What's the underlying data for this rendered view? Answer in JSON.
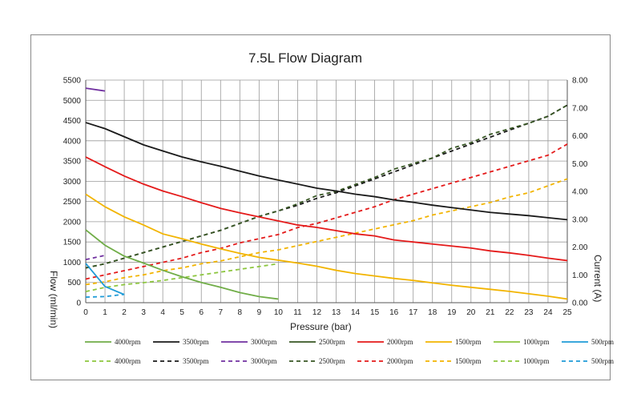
{
  "chart_data": {
    "type": "line",
    "title": "7.5L Flow Diagram",
    "xlabel": "Pressure (bar)",
    "ylabel_left": "Flow (ml/min)",
    "ylabel_right": "Current (A)",
    "xlim": [
      0,
      25
    ],
    "ylim_left": [
      0,
      5500
    ],
    "ylim_right": [
      0,
      8
    ],
    "x_ticks": [
      "0",
      "1",
      "2",
      "3",
      "4",
      "5",
      "6",
      "7",
      "8",
      "9",
      "10",
      "11",
      "12",
      "13",
      "14",
      "15",
      "16",
      "17",
      "18",
      "19",
      "20",
      "21",
      "22",
      "23",
      "24",
      "25"
    ],
    "y_left_ticks": [
      "0",
      "500",
      "1000",
      "1500",
      "2000",
      "2500",
      "3000",
      "3500",
      "4000",
      "4500",
      "5000",
      "5500"
    ],
    "y_right_ticks": [
      "0.00",
      "1.00",
      "2.00",
      "3.00",
      "4.00",
      "5.00",
      "6.00",
      "7.00",
      "8.00"
    ],
    "grid": true,
    "legend_position": "bottom",
    "flow_series": [
      {
        "name": "4000rpm",
        "color": "#70ad47",
        "x": [
          0,
          1,
          2,
          3,
          4,
          5,
          6,
          7,
          8,
          9,
          10
        ],
        "y": [
          1800,
          1420,
          1150,
          980,
          800,
          640,
          500,
          380,
          250,
          150,
          90
        ]
      },
      {
        "name": "3500rpm",
        "color": "#1a1a1a",
        "x": [
          0,
          1,
          2,
          3,
          4,
          5,
          6,
          7,
          8,
          9,
          10,
          11,
          12,
          13,
          14,
          15,
          16,
          17,
          18,
          19,
          20,
          21,
          22,
          23,
          24,
          25
        ],
        "y": [
          4450,
          4300,
          4100,
          3900,
          3750,
          3600,
          3480,
          3370,
          3250,
          3130,
          3030,
          2930,
          2830,
          2760,
          2680,
          2620,
          2540,
          2480,
          2410,
          2350,
          2290,
          2230,
          2190,
          2150,
          2100,
          2050
        ]
      },
      {
        "name": "3000rpm",
        "color": "#7030a0",
        "x": [
          0,
          1
        ],
        "y": [
          5300,
          5230
        ]
      },
      {
        "name": "2500rpm",
        "color": "#375623",
        "x": [],
        "y": []
      },
      {
        "name": "2000rpm",
        "color": "#e41a1a",
        "x": [
          0,
          1,
          2,
          3,
          4,
          5,
          6,
          7,
          8,
          9,
          10,
          11,
          12,
          13,
          14,
          15,
          16,
          17,
          18,
          19,
          20,
          21,
          22,
          23,
          24,
          25
        ],
        "y": [
          3600,
          3360,
          3130,
          2930,
          2760,
          2620,
          2470,
          2330,
          2220,
          2120,
          2020,
          1920,
          1860,
          1780,
          1700,
          1650,
          1550,
          1500,
          1450,
          1400,
          1350,
          1280,
          1230,
          1170,
          1100,
          1040
        ]
      },
      {
        "name": "1500rpm",
        "color": "#f2b400",
        "x": [
          0,
          1,
          2,
          3,
          4,
          5,
          6,
          7,
          8,
          9,
          10,
          11,
          12,
          13,
          14,
          15,
          16,
          17,
          18,
          19,
          20,
          21,
          22,
          23,
          24,
          25
        ],
        "y": [
          2680,
          2370,
          2120,
          1920,
          1700,
          1580,
          1450,
          1330,
          1220,
          1120,
          1050,
          980,
          900,
          800,
          720,
          660,
          600,
          550,
          490,
          430,
          380,
          330,
          280,
          220,
          160,
          90
        ]
      },
      {
        "name": "1000rpm",
        "color": "#8dc63f",
        "x": [],
        "y": []
      },
      {
        "name": "500rpm",
        "color": "#1f9bd7",
        "x": [
          0,
          1,
          2
        ],
        "y": [
          970,
          400,
          200
        ]
      }
    ],
    "current_series": [
      {
        "name": "4000rpm",
        "color": "#8dc63f",
        "x": [
          0,
          1,
          2,
          3,
          4,
          5,
          6,
          7,
          8,
          9,
          10
        ],
        "y": [
          0.4,
          0.55,
          0.65,
          0.72,
          0.8,
          0.9,
          1.0,
          1.1,
          1.2,
          1.3,
          1.4
        ]
      },
      {
        "name": "3500rpm",
        "color": "#1a1a1a",
        "x": [
          0,
          1,
          2,
          3,
          4,
          5,
          6,
          7,
          8,
          9,
          10,
          11,
          12,
          13,
          14,
          15,
          16,
          17,
          18,
          19,
          20,
          21,
          22,
          23,
          24,
          25
        ],
        "y": [
          1.25,
          1.4,
          1.6,
          1.8,
          2.0,
          2.2,
          2.4,
          2.6,
          2.85,
          3.1,
          3.3,
          3.5,
          3.75,
          3.95,
          4.2,
          4.45,
          4.7,
          4.95,
          5.2,
          5.45,
          5.7,
          5.95,
          6.2,
          6.45,
          6.7,
          7.1
        ]
      },
      {
        "name": "3000rpm",
        "color": "#7030a0",
        "x": [
          0,
          1
        ],
        "y": [
          1.55,
          1.7
        ]
      },
      {
        "name": "2500rpm",
        "color": "#375623",
        "x": [
          0,
          1,
          2,
          3,
          4,
          5,
          6,
          7,
          8,
          9,
          10,
          11,
          12,
          13,
          14,
          15,
          16,
          17,
          18,
          19,
          20,
          21,
          22,
          23,
          24,
          25
        ],
        "y": [
          1.25,
          1.4,
          1.6,
          1.8,
          2.0,
          2.2,
          2.4,
          2.6,
          2.85,
          3.1,
          3.3,
          3.55,
          3.85,
          4.0,
          4.25,
          4.5,
          4.8,
          5.0,
          5.2,
          5.55,
          5.75,
          6.05,
          6.25,
          6.45,
          6.7,
          7.1
        ]
      },
      {
        "name": "2000rpm",
        "color": "#e41a1a",
        "x": [
          0,
          1,
          2,
          3,
          4,
          5,
          6,
          7,
          8,
          9,
          10,
          11,
          12,
          13,
          14,
          15,
          16,
          17,
          18,
          19,
          20,
          21,
          22,
          23,
          24,
          25
        ],
        "y": [
          0.85,
          1.0,
          1.15,
          1.3,
          1.45,
          1.6,
          1.8,
          1.95,
          2.15,
          2.3,
          2.45,
          2.7,
          2.85,
          3.05,
          3.25,
          3.45,
          3.7,
          3.9,
          4.1,
          4.3,
          4.5,
          4.7,
          4.9,
          5.1,
          5.3,
          5.7
        ]
      },
      {
        "name": "1500rpm",
        "color": "#f2b400",
        "x": [
          0,
          1,
          2,
          3,
          4,
          5,
          6,
          7,
          8,
          9,
          10,
          11,
          12,
          13,
          14,
          15,
          16,
          17,
          18,
          19,
          20,
          21,
          22,
          23,
          24,
          25
        ],
        "y": [
          0.65,
          0.75,
          0.9,
          1.0,
          1.15,
          1.25,
          1.4,
          1.5,
          1.65,
          1.8,
          1.9,
          2.05,
          2.2,
          2.35,
          2.5,
          2.65,
          2.8,
          2.95,
          3.15,
          3.3,
          3.45,
          3.6,
          3.8,
          3.95,
          4.2,
          4.45
        ]
      },
      {
        "name": "1000rpm",
        "color": "#8dc63f",
        "x": [],
        "y": []
      },
      {
        "name": "500rpm",
        "color": "#1f9bd7",
        "x": [
          0,
          1,
          2
        ],
        "y": [
          0.2,
          0.22,
          0.3
        ]
      }
    ],
    "legend_row1": [
      "4000rpm",
      "3500rpm",
      "3000rpm",
      "2500rpm",
      "2000rpm",
      "1500rpm",
      "1000rpm",
      "500rpm"
    ],
    "legend_row1_colors": [
      "#70ad47",
      "#1a1a1a",
      "#7030a0",
      "#375623",
      "#e41a1a",
      "#f2b400",
      "#8dc63f",
      "#1f9bd7"
    ],
    "legend_row2": [
      "4000rpm",
      "3500rpm",
      "3000rpm",
      "2500rpm",
      "2000rpm",
      "1500rpm",
      "1000rpm",
      "500rpm"
    ],
    "legend_row2_colors": [
      "#8dc63f",
      "#1a1a1a",
      "#7030a0",
      "#375623",
      "#e41a1a",
      "#f2b400",
      "#8dc63f",
      "#1f9bd7"
    ]
  }
}
